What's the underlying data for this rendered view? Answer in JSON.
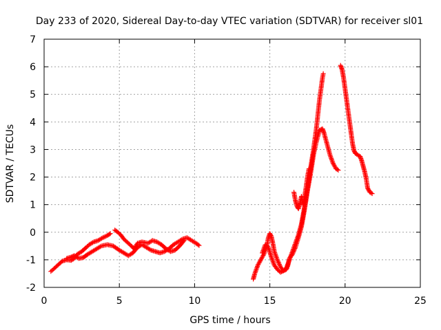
{
  "chart_data": {
    "type": "scatter",
    "title": "Day 233 of 2020, Sidereal Day-to-day VTEC variation (SDTVAR) for receiver sl01",
    "xlabel": "GPS time / hours",
    "ylabel": "SDTVAR / TECUs",
    "xlim": [
      0,
      25
    ],
    "ylim": [
      -2,
      7
    ],
    "xticks": [
      0,
      5,
      10,
      15,
      20,
      25
    ],
    "yticks": [
      -2,
      -1,
      0,
      1,
      2,
      3,
      4,
      5,
      6,
      7
    ],
    "grid": true,
    "marker": "+",
    "series": [
      {
        "name": "sl01",
        "color": "#ff0000",
        "segments": [
          [
            [
              0.45,
              -1.42
            ],
            [
              0.6,
              -1.35
            ],
            [
              0.8,
              -1.25
            ],
            [
              1.0,
              -1.15
            ],
            [
              1.2,
              -1.05
            ],
            [
              1.5,
              -1.0
            ],
            [
              1.8,
              -1.02
            ],
            [
              2.0,
              -0.95
            ],
            [
              2.2,
              -0.8
            ],
            [
              2.5,
              -0.7
            ],
            [
              2.8,
              -0.55
            ],
            [
              3.0,
              -0.45
            ],
            [
              3.3,
              -0.35
            ],
            [
              3.6,
              -0.3
            ],
            [
              3.9,
              -0.2
            ],
            [
              4.2,
              -0.12
            ],
            [
              4.4,
              -0.05
            ]
          ],
          [
            [
              1.5,
              -0.95
            ],
            [
              1.8,
              -0.9
            ],
            [
              2.0,
              -0.85
            ],
            [
              2.3,
              -0.95
            ],
            [
              2.6,
              -0.92
            ],
            [
              2.9,
              -0.8
            ],
            [
              3.2,
              -0.7
            ],
            [
              3.5,
              -0.6
            ],
            [
              3.8,
              -0.5
            ],
            [
              4.2,
              -0.45
            ],
            [
              4.6,
              -0.5
            ],
            [
              5.0,
              -0.65
            ],
            [
              5.3,
              -0.75
            ],
            [
              5.6,
              -0.85
            ],
            [
              5.9,
              -0.75
            ],
            [
              6.2,
              -0.55
            ],
            [
              6.5,
              -0.45
            ],
            [
              6.8,
              -0.55
            ],
            [
              7.1,
              -0.65
            ],
            [
              7.4,
              -0.7
            ],
            [
              7.7,
              -0.75
            ],
            [
              8.0,
              -0.7
            ],
            [
              8.3,
              -0.6
            ],
            [
              8.6,
              -0.45
            ],
            [
              8.9,
              -0.35
            ],
            [
              9.2,
              -0.25
            ],
            [
              9.5,
              -0.2
            ],
            [
              9.8,
              -0.3
            ],
            [
              10.1,
              -0.4
            ],
            [
              10.3,
              -0.48
            ]
          ],
          [
            [
              4.7,
              0.08
            ],
            [
              4.9,
              0.0
            ],
            [
              5.1,
              -0.1
            ],
            [
              5.3,
              -0.25
            ],
            [
              5.5,
              -0.35
            ],
            [
              5.7,
              -0.45
            ],
            [
              5.9,
              -0.55
            ],
            [
              6.0,
              -0.6
            ],
            [
              6.2,
              -0.4
            ],
            [
              6.5,
              -0.35
            ],
            [
              6.9,
              -0.4
            ],
            [
              7.2,
              -0.3
            ],
            [
              7.5,
              -0.35
            ],
            [
              7.8,
              -0.45
            ],
            [
              8.1,
              -0.6
            ],
            [
              8.4,
              -0.7
            ],
            [
              8.7,
              -0.65
            ],
            [
              9.0,
              -0.5
            ],
            [
              9.3,
              -0.3
            ]
          ],
          [
            [
              13.9,
              -1.7
            ],
            [
              14.0,
              -1.5
            ],
            [
              14.2,
              -1.2
            ],
            [
              14.4,
              -1.0
            ],
            [
              14.6,
              -0.8
            ],
            [
              14.8,
              -0.5
            ],
            [
              14.9,
              -0.2
            ],
            [
              15.0,
              -0.05
            ],
            [
              15.1,
              -0.15
            ],
            [
              15.2,
              -0.4
            ],
            [
              15.3,
              -0.7
            ],
            [
              15.5,
              -1.0
            ],
            [
              15.7,
              -1.25
            ],
            [
              15.9,
              -1.4
            ],
            [
              16.1,
              -1.35
            ],
            [
              16.2,
              -1.2
            ],
            [
              16.3,
              -0.95
            ],
            [
              16.5,
              -0.8
            ],
            [
              16.7,
              -0.55
            ],
            [
              16.9,
              -0.2
            ],
            [
              17.1,
              0.2
            ],
            [
              17.3,
              0.8
            ],
            [
              17.5,
              1.5
            ],
            [
              17.7,
              2.1
            ],
            [
              17.9,
              2.8
            ],
            [
              18.1,
              3.3
            ],
            [
              18.3,
              3.7
            ],
            [
              18.5,
              3.75
            ],
            [
              18.6,
              3.6
            ],
            [
              18.8,
              3.2
            ],
            [
              19.0,
              2.8
            ],
            [
              19.2,
              2.5
            ],
            [
              19.4,
              2.3
            ],
            [
              19.55,
              2.25
            ]
          ],
          [
            [
              14.5,
              -0.75
            ],
            [
              14.7,
              -0.45
            ],
            [
              14.9,
              -0.55
            ],
            [
              15.1,
              -0.9
            ],
            [
              15.3,
              -1.2
            ],
            [
              15.5,
              -1.35
            ],
            [
              15.7,
              -1.45
            ],
            [
              15.9,
              -1.4
            ],
            [
              16.1,
              -1.3
            ],
            [
              16.3,
              -1.0
            ],
            [
              16.5,
              -0.7
            ],
            [
              16.7,
              -0.4
            ],
            [
              16.9,
              -0.1
            ],
            [
              17.1,
              0.3
            ],
            [
              17.3,
              0.9
            ],
            [
              17.5,
              1.6
            ],
            [
              17.7,
              2.3
            ],
            [
              17.9,
              3.0
            ],
            [
              18.1,
              3.8
            ],
            [
              18.3,
              4.8
            ],
            [
              18.5,
              5.6
            ],
            [
              18.55,
              5.75
            ]
          ],
          [
            [
              16.6,
              1.45
            ],
            [
              16.7,
              1.15
            ],
            [
              16.8,
              0.95
            ],
            [
              16.9,
              0.85
            ],
            [
              17.0,
              1.05
            ],
            [
              17.1,
              1.3
            ],
            [
              17.2,
              1.0
            ],
            [
              17.3,
              1.25
            ],
            [
              17.4,
              1.6
            ],
            [
              17.5,
              2.0
            ],
            [
              17.6,
              2.3
            ]
          ],
          [
            [
              19.7,
              6.05
            ],
            [
              19.8,
              5.9
            ],
            [
              19.9,
              5.6
            ],
            [
              20.0,
              5.2
            ],
            [
              20.1,
              4.8
            ],
            [
              20.2,
              4.4
            ],
            [
              20.3,
              4.0
            ],
            [
              20.4,
              3.6
            ],
            [
              20.5,
              3.2
            ],
            [
              20.6,
              2.95
            ],
            [
              20.7,
              2.85
            ],
            [
              20.85,
              2.8
            ],
            [
              21.0,
              2.75
            ],
            [
              21.1,
              2.6
            ],
            [
              21.2,
              2.4
            ],
            [
              21.3,
              2.2
            ],
            [
              21.4,
              1.95
            ],
            [
              21.5,
              1.6
            ],
            [
              21.65,
              1.45
            ],
            [
              21.8,
              1.4
            ]
          ]
        ]
      }
    ]
  }
}
